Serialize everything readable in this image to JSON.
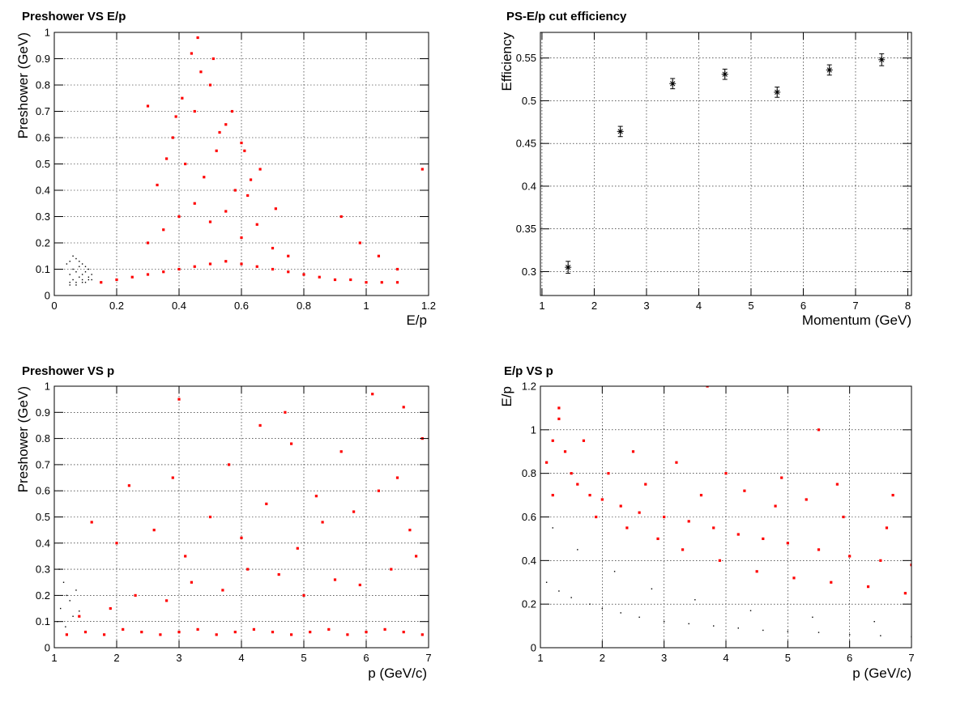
{
  "chart_data": [
    {
      "type": "scatter",
      "title": "Preshower VS E/p",
      "xlabel": "E/p",
      "ylabel": "Preshower (GeV)",
      "xlim": [
        0,
        1.2
      ],
      "ylim": [
        0,
        1
      ],
      "xticks": [
        0,
        0.2,
        0.4,
        0.6,
        0.8,
        1,
        1.2
      ],
      "xtick_labels": [
        "0",
        "0.2",
        "0.4",
        "0.6",
        "0.8",
        "1",
        "1.2"
      ],
      "yticks": [
        0,
        0.1,
        0.2,
        0.3,
        0.4,
        0.5,
        0.6,
        0.7,
        0.8,
        0.9,
        1
      ],
      "ytick_labels": [
        "0",
        "0.1",
        "0.2",
        "0.3",
        "0.4",
        "0.5",
        "0.6",
        "0.7",
        "0.8",
        "0.9",
        "1"
      ],
      "grid": true,
      "series": [
        {
          "color": "#000000",
          "marker": "dot",
          "x": [
            0.05,
            0.06,
            0.07,
            0.08,
            0.09,
            0.1,
            0.11,
            0.05,
            0.07,
            0.09,
            0.11,
            0.06,
            0.08,
            0.1,
            0.04,
            0.12,
            0.05,
            0.07,
            0.09,
            0.11,
            0.06,
            0.08,
            0.1,
            0.12,
            0.05,
            0.07,
            0.09
          ],
          "y": [
            0.05,
            0.06,
            0.05,
            0.07,
            0.06,
            0.05,
            0.06,
            0.08,
            0.09,
            0.08,
            0.07,
            0.1,
            0.11,
            0.09,
            0.12,
            0.06,
            0.13,
            0.14,
            0.12,
            0.1,
            0.15,
            0.13,
            0.11,
            0.08,
            0.04,
            0.04,
            0.05
          ]
        },
        {
          "color": "#ff0000",
          "marker": "square",
          "x": [
            0.15,
            0.2,
            0.25,
            0.3,
            0.35,
            0.4,
            0.45,
            0.5,
            0.55,
            0.6,
            0.65,
            0.7,
            0.75,
            0.8,
            0.85,
            0.9,
            0.95,
            1.0,
            1.05,
            1.1,
            0.3,
            0.35,
            0.4,
            0.45,
            0.5,
            0.55,
            0.6,
            0.65,
            0.7,
            0.75,
            0.42,
            0.48,
            0.52,
            0.58,
            0.62,
            0.38,
            0.45,
            0.55,
            0.6,
            0.5,
            0.33,
            0.41,
            0.47,
            0.53,
            0.66,
            0.71,
            0.36,
            0.44,
            0.57,
            0.63,
            0.46,
            0.51,
            0.39,
            0.61,
            0.3,
            0.92,
            0.98,
            1.04,
            1.1,
            1.18
          ],
          "y": [
            0.05,
            0.06,
            0.07,
            0.08,
            0.09,
            0.1,
            0.11,
            0.12,
            0.13,
            0.12,
            0.11,
            0.1,
            0.09,
            0.08,
            0.07,
            0.06,
            0.06,
            0.05,
            0.05,
            0.05,
            0.2,
            0.25,
            0.3,
            0.35,
            0.28,
            0.32,
            0.22,
            0.27,
            0.18,
            0.15,
            0.5,
            0.45,
            0.55,
            0.4,
            0.38,
            0.6,
            0.7,
            0.65,
            0.58,
            0.8,
            0.42,
            0.75,
            0.85,
            0.62,
            0.48,
            0.33,
            0.52,
            0.92,
            0.7,
            0.44,
            0.98,
            0.9,
            0.68,
            0.55,
            0.72,
            0.3,
            0.2,
            0.15,
            0.1,
            0.48
          ]
        }
      ]
    },
    {
      "type": "scatter",
      "title": "PS-E/p cut efficiency",
      "xlabel": "Momentum (GeV)",
      "ylabel": "Efficiency",
      "xlim": [
        0.97,
        8.07
      ],
      "ylim": [
        0.272,
        0.58
      ],
      "xticks": [
        1,
        2,
        3,
        4,
        5,
        6,
        7,
        8
      ],
      "xtick_labels": [
        "1",
        "2",
        "3",
        "4",
        "5",
        "6",
        "7",
        "8"
      ],
      "yticks": [
        0.3,
        0.35,
        0.4,
        0.45,
        0.5,
        0.55
      ],
      "ytick_labels": [
        "0.3",
        "0.35",
        "0.4",
        "0.45",
        "0.5",
        "0.55"
      ],
      "grid": true,
      "series": [
        {
          "color": "#000000",
          "marker": "star",
          "x": [
            1.5,
            2.5,
            3.5,
            4.5,
            5.5,
            6.5,
            7.5
          ],
          "y": [
            0.305,
            0.464,
            0.52,
            0.531,
            0.51,
            0.536,
            0.548
          ],
          "err": [
            0.007,
            0.006,
            0.006,
            0.006,
            0.006,
            0.006,
            0.007
          ]
        }
      ]
    },
    {
      "type": "scatter",
      "title": "Preshower VS p",
      "xlabel": "p (GeV/c)",
      "ylabel": "Preshower (GeV)",
      "xlim": [
        1,
        7
      ],
      "ylim": [
        0,
        1
      ],
      "xticks": [
        1,
        2,
        3,
        4,
        5,
        6,
        7
      ],
      "xtick_labels": [
        "1",
        "2",
        "3",
        "4",
        "5",
        "6",
        "7"
      ],
      "yticks": [
        0,
        0.1,
        0.2,
        0.3,
        0.4,
        0.5,
        0.6,
        0.7,
        0.8,
        0.9,
        1
      ],
      "ytick_labels": [
        "0",
        "0.1",
        "0.2",
        "0.3",
        "0.4",
        "0.5",
        "0.6",
        "0.7",
        "0.8",
        "0.9",
        "1"
      ],
      "grid": true,
      "series": [
        {
          "color": "#000000",
          "marker": "dot",
          "x": [
            1.05,
            1.1,
            1.2,
            1.3,
            1.15,
            1.25,
            1.08,
            1.18,
            1.35,
            1.4
          ],
          "y": [
            0.1,
            0.15,
            0.2,
            0.12,
            0.25,
            0.18,
            0.3,
            0.08,
            0.22,
            0.14
          ]
        },
        {
          "color": "#ff0000",
          "marker": "square",
          "x": [
            1.2,
            1.5,
            1.8,
            2.1,
            2.4,
            2.7,
            3.0,
            3.3,
            3.6,
            3.9,
            4.2,
            4.5,
            4.8,
            5.1,
            5.4,
            5.7,
            6.0,
            6.3,
            6.6,
            6.9,
            1.4,
            1.9,
            2.3,
            2.8,
            3.2,
            3.7,
            4.1,
            4.6,
            5.0,
            5.5,
            5.9,
            6.4,
            6.8,
            2.0,
            2.6,
            3.1,
            3.5,
            4.0,
            4.4,
            4.9,
            5.3,
            5.8,
            6.2,
            6.7,
            3.0,
            4.3,
            5.6,
            6.5,
            6.9,
            2.2,
            3.8,
            4.7,
            5.2,
            6.1,
            1.6,
            2.9,
            4.8,
            6.6
          ],
          "y": [
            0.05,
            0.06,
            0.05,
            0.07,
            0.06,
            0.05,
            0.06,
            0.07,
            0.05,
            0.06,
            0.07,
            0.06,
            0.05,
            0.06,
            0.07,
            0.05,
            0.06,
            0.07,
            0.06,
            0.05,
            0.12,
            0.15,
            0.2,
            0.18,
            0.25,
            0.22,
            0.3,
            0.28,
            0.2,
            0.26,
            0.24,
            0.3,
            0.35,
            0.4,
            0.45,
            0.35,
            0.5,
            0.42,
            0.55,
            0.38,
            0.48,
            0.52,
            0.6,
            0.45,
            0.95,
            0.85,
            0.75,
            0.65,
            0.8,
            0.62,
            0.7,
            0.9,
            0.58,
            0.97,
            0.48,
            0.65,
            0.78,
            0.92
          ]
        }
      ]
    },
    {
      "type": "scatter",
      "title": "E/p VS p",
      "xlabel": "p (GeV/c)",
      "ylabel": "E/p",
      "xlim": [
        1,
        7
      ],
      "ylim": [
        0,
        1.2
      ],
      "xticks": [
        1,
        2,
        3,
        4,
        5,
        6,
        7
      ],
      "xtick_labels": [
        "1",
        "2",
        "3",
        "4",
        "5",
        "6",
        "7"
      ],
      "yticks": [
        0,
        0.2,
        0.4,
        0.6,
        0.8,
        1,
        1.2
      ],
      "ytick_labels": [
        "0",
        "0.2",
        "0.4",
        "0.6",
        "0.8",
        "1",
        "1.2"
      ],
      "grid": true,
      "series": [
        {
          "color": "#000000",
          "marker": "dot",
          "x": [
            1.1,
            1.3,
            1.5,
            1.8,
            2.0,
            2.3,
            2.6,
            3.0,
            3.4,
            3.8,
            4.2,
            4.6,
            5.0,
            5.5,
            6.0,
            6.5,
            7.0,
            1.2,
            1.6,
            2.2,
            2.8,
            3.5,
            4.4,
            5.4,
            6.4
          ],
          "y": [
            0.3,
            0.26,
            0.23,
            0.2,
            0.18,
            0.16,
            0.14,
            0.12,
            0.11,
            0.1,
            0.09,
            0.08,
            0.075,
            0.07,
            0.06,
            0.055,
            0.05,
            0.55,
            0.45,
            0.35,
            0.27,
            0.22,
            0.17,
            0.14,
            0.12
          ]
        },
        {
          "color": "#ff0000",
          "marker": "square",
          "x": [
            1.1,
            1.2,
            1.3,
            1.4,
            1.6,
            1.8,
            2.0,
            2.3,
            2.6,
            3.0,
            3.4,
            3.8,
            4.2,
            4.6,
            5.0,
            5.5,
            6.0,
            6.5,
            7.0,
            1.2,
            1.5,
            1.9,
            2.4,
            2.9,
            3.3,
            3.9,
            4.5,
            5.1,
            5.7,
            6.3,
            6.9,
            2.1,
            2.7,
            3.6,
            4.3,
            4.8,
            5.3,
            5.9,
            6.6,
            1.3,
            1.7,
            2.5,
            3.2,
            4.0,
            4.9,
            5.8,
            6.7,
            3.7,
            5.5
          ],
          "y": [
            0.85,
            0.95,
            1.05,
            0.9,
            0.75,
            0.7,
            0.68,
            0.65,
            0.62,
            0.6,
            0.58,
            0.55,
            0.52,
            0.5,
            0.48,
            0.45,
            0.42,
            0.4,
            0.38,
            0.7,
            0.8,
            0.6,
            0.55,
            0.5,
            0.45,
            0.4,
            0.35,
            0.32,
            0.3,
            0.28,
            0.25,
            0.8,
            0.75,
            0.7,
            0.72,
            0.65,
            0.68,
            0.6,
            0.55,
            1.1,
            0.95,
            0.9,
            0.85,
            0.8,
            0.78,
            0.75,
            0.7,
            1.2,
            1.0
          ]
        }
      ]
    }
  ]
}
